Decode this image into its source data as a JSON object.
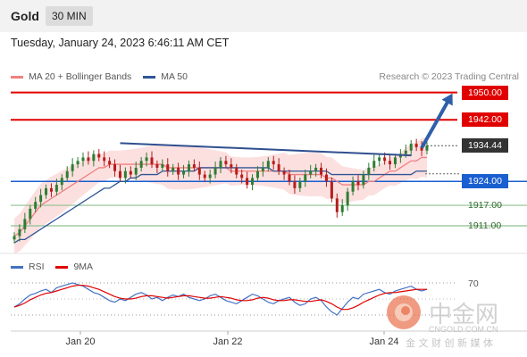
{
  "header": {
    "instrument": "Gold",
    "timeframe": "30 MIN",
    "timestamp": "Tuesday, January 24, 2023 6:46:11 AM CET"
  },
  "legend": {
    "items": [
      {
        "label": "MA 20 + Bollinger Bands",
        "color": "#f08080"
      },
      {
        "label": "MA 50",
        "color": "#2f5597"
      }
    ],
    "credit": "Research © 2023 Trading Central"
  },
  "rsi_legend": {
    "items": [
      {
        "label": "RSI",
        "color": "#4472c4"
      },
      {
        "label": "9MA",
        "color": "#e00000"
      }
    ]
  },
  "watermark": {
    "cn": "中金网",
    "domain": "CNGOLD.COM.CN",
    "slogan": "金 文 财 创 新 媒 体"
  },
  "colors": {
    "resistance": "#e00000",
    "pivot": "#1a5fd0",
    "support": "#8fc08f",
    "trendline": "#2f4f8f",
    "arrow": "#2f5fa8",
    "last": "#333333",
    "bull": "#2e7d32",
    "bear": "#b71c1c"
  },
  "chart_data": [
    {
      "type": "candlestick",
      "title": "Gold 30 MIN",
      "x_ticks": [
        "Jan 20",
        "Jan 22",
        "Jan 24"
      ],
      "ylim": [
        1905,
        1952
      ],
      "levels": [
        {
          "value": 1950.0,
          "label": "1950.00",
          "kind": "resistance"
        },
        {
          "value": 1942.0,
          "label": "1942.00",
          "kind": "resistance"
        },
        {
          "value": 1934.44,
          "label": "1934.44",
          "kind": "last"
        },
        {
          "value": 1924.0,
          "label": "1924.00",
          "kind": "pivot"
        },
        {
          "value": 1917.0,
          "label": "1917.00",
          "kind": "support"
        },
        {
          "value": 1911.0,
          "label": "1911.00",
          "kind": "support"
        }
      ],
      "trendline": {
        "from": [
          20,
          1935.2
        ],
        "to": [
          75,
          1931.6
        ]
      },
      "forecast_arrow": {
        "from": [
          77,
          1933.8
        ],
        "to": [
          83,
          1948.6
        ]
      },
      "series": [
        {
          "name": "Price",
          "close": [
            1908,
            1910,
            1913,
            1916,
            1918,
            1920,
            1922,
            1921,
            1923,
            1925,
            1927,
            1929,
            1930,
            1931,
            1930,
            1932,
            1931,
            1930,
            1929,
            1927,
            1925,
            1927,
            1926,
            1928,
            1930,
            1931,
            1929,
            1928,
            1929,
            1927,
            1928,
            1926,
            1927,
            1929,
            1928,
            1926,
            1925,
            1926,
            1928,
            1930,
            1929,
            1928,
            1926,
            1925,
            1923,
            1925,
            1927,
            1928,
            1930,
            1929,
            1927,
            1926,
            1924,
            1922,
            1924,
            1926,
            1927,
            1928,
            1926,
            1924,
            1919,
            1915,
            1917,
            1921,
            1924,
            1923,
            1926,
            1928,
            1930,
            1931,
            1930,
            1929,
            1931,
            1932,
            1933,
            1935,
            1934,
            1933,
            1934.44
          ]
        },
        {
          "name": "MA 20",
          "values": [
            1908,
            1909,
            1911,
            1913,
            1915,
            1917,
            1918,
            1919,
            1920,
            1921,
            1922,
            1923,
            1924,
            1925,
            1926,
            1927,
            1928,
            1928,
            1929,
            1929,
            1929,
            1929,
            1929,
            1929,
            1929,
            1929,
            1929,
            1929,
            1929,
            1928,
            1928,
            1928,
            1928,
            1928,
            1928,
            1928,
            1928,
            1928,
            1928,
            1928,
            1928,
            1927,
            1927,
            1927,
            1927,
            1927,
            1927,
            1927,
            1927,
            1927,
            1927,
            1927,
            1926,
            1926,
            1926,
            1926,
            1926,
            1926,
            1926,
            1925,
            1925,
            1924,
            1923,
            1923,
            1923,
            1923,
            1923,
            1924,
            1924,
            1925,
            1926,
            1927,
            1927,
            1928,
            1929,
            1930,
            1930,
            1931,
            1931
          ]
        },
        {
          "name": "MA 50",
          "values": [
            1906,
            1907,
            1907,
            1908,
            1909,
            1910,
            1911,
            1912,
            1913,
            1914,
            1915,
            1916,
            1917,
            1918,
            1919,
            1920,
            1921,
            1922,
            1922,
            1923,
            1924,
            1924,
            1925,
            1925,
            1926,
            1926,
            1926,
            1926,
            1927,
            1927,
            1927,
            1927,
            1927,
            1927,
            1927,
            1928,
            1928,
            1928,
            1928,
            1928,
            1928,
            1928,
            1928,
            1928,
            1928,
            1928,
            1928,
            1928,
            1928,
            1927,
            1927,
            1927,
            1927,
            1927,
            1927,
            1927,
            1927,
            1927,
            1927,
            1927,
            1926,
            1926,
            1926,
            1926,
            1926,
            1926,
            1926,
            1926,
            1926,
            1926,
            1926,
            1926,
            1926,
            1926,
            1926,
            1926,
            1927,
            1927,
            1927
          ]
        }
      ]
    },
    {
      "type": "line",
      "title": "RSI",
      "ylim": [
        20,
        80
      ],
      "levels": [
        70,
        30
      ],
      "level_labels": [
        "70"
      ],
      "series": [
        {
          "name": "RSI",
          "values": [
            40,
            44,
            50,
            55,
            57,
            60,
            62,
            58,
            64,
            66,
            68,
            70,
            68,
            66,
            62,
            58,
            56,
            52,
            48,
            46,
            50,
            48,
            52,
            56,
            58,
            55,
            50,
            52,
            48,
            52,
            55,
            53,
            56,
            52,
            50,
            48,
            50,
            54,
            56,
            52,
            48,
            46,
            44,
            48,
            52,
            56,
            54,
            50,
            46,
            44,
            48,
            50,
            52,
            46,
            42,
            44,
            50,
            52,
            48,
            40,
            34,
            30,
            38,
            46,
            52,
            50,
            56,
            58,
            60,
            62,
            58,
            56,
            60,
            62,
            64,
            66,
            62,
            60,
            62
          ]
        },
        {
          "name": "9MA",
          "values": [
            40,
            42,
            45,
            49,
            52,
            55,
            57,
            58,
            60,
            62,
            64,
            66,
            67,
            67,
            66,
            64,
            62,
            59,
            56,
            53,
            51,
            50,
            50,
            51,
            53,
            54,
            54,
            53,
            52,
            51,
            52,
            53,
            54,
            54,
            53,
            52,
            51,
            51,
            52,
            53,
            52,
            51,
            49,
            48,
            48,
            49,
            51,
            52,
            51,
            49,
            48,
            48,
            49,
            49,
            48,
            47,
            47,
            48,
            49,
            47,
            44,
            40,
            37,
            37,
            39,
            42,
            46,
            49,
            52,
            55,
            57,
            58,
            58,
            59,
            60,
            61,
            62,
            62,
            62
          ]
        }
      ]
    }
  ]
}
